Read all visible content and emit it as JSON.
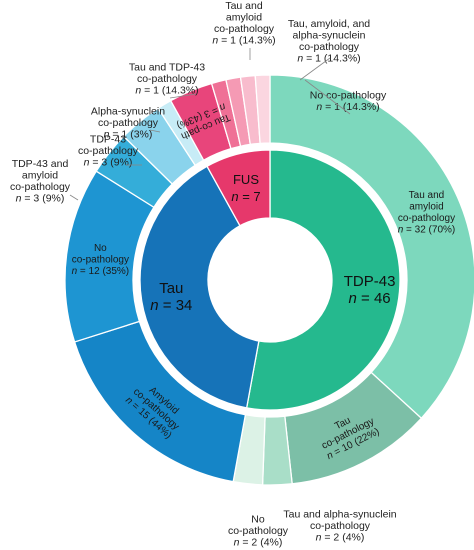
{
  "chart_data": {
    "type": "pie",
    "variant": "nested-donut",
    "inner_ring": [
      {
        "name": "TDP-43",
        "n_label": "n = 46",
        "value": 46,
        "color": "#25b98e"
      },
      {
        "name": "Tau",
        "n_label": "n = 34",
        "value": 34,
        "color": "#1673b8"
      },
      {
        "name": "FUS",
        "n_label": "n = 7",
        "value": 7,
        "color": "#e6386b"
      }
    ],
    "outer_ring": [
      {
        "parent": "TDP-43",
        "label": "Tau and amyloid co-pathology",
        "n_label": "n = 32 (70%)",
        "value": 32,
        "color": "#7dd8bd"
      },
      {
        "parent": "TDP-43",
        "label": "Tau co-pathology",
        "n_label": "n = 10 (22%)",
        "value": 10,
        "color": "#7cbfa7"
      },
      {
        "parent": "TDP-43",
        "label": "Tau and alpha-synuclein co-pathology",
        "n_label": "n = 2 (4%)",
        "value": 2,
        "color": "#a9dec8"
      },
      {
        "parent": "TDP-43",
        "label": "No co-pathology",
        "n_label": "n = 2 (4%)",
        "value": 2,
        "color": "#dcf2e6"
      },
      {
        "parent": "Tau",
        "label": "Amyloid co-pathology",
        "n_label": "n = 15 (44%)",
        "value": 15,
        "color": "#1585c7"
      },
      {
        "parent": "Tau",
        "label": "No co-pathology",
        "n_label": "n = 12 (35%)",
        "value": 12,
        "color": "#1e95d2"
      },
      {
        "parent": "Tau",
        "label": "TDP-43 and amyloid co-pathology",
        "n_label": "n = 3 (9%)",
        "value": 3,
        "color": "#34add9"
      },
      {
        "parent": "Tau",
        "label": "TDP-43 co-pathology",
        "n_label": "n = 3 (9%)",
        "value": 3,
        "color": "#8ad3ec"
      },
      {
        "parent": "Tau",
        "label": "Alpha-synuclein co-pathology",
        "n_label": "n = 1 (3%)",
        "value": 1,
        "color": "#c7ecf6"
      },
      {
        "parent": "FUS",
        "label": "Tau co-path",
        "n_label": "n = 3 (43%)",
        "value": 3,
        "color": "#e8457b"
      },
      {
        "parent": "FUS",
        "label": "Tau and TDP-43 co-pathology",
        "n_label": "n = 1 (14.3%)",
        "value": 1,
        "color": "#ef7096"
      },
      {
        "parent": "FUS",
        "label": "Tau and amyloid co-pathology",
        "n_label": "n = 1 (14.3%)",
        "value": 1,
        "color": "#f59ab4"
      },
      {
        "parent": "FUS",
        "label": "Tau, amyloid, and alpha-synuclein co-pathology",
        "n_label": "n = 1 (14.3%)",
        "value": 1,
        "color": "#f8bccd"
      },
      {
        "parent": "FUS",
        "label": "No co-pathology",
        "n_label": "n = 1 (14.3%)",
        "value": 1,
        "color": "#fbd6e0"
      }
    ],
    "outside_labels": [
      {
        "lines": [
          "Tau and",
          "amyloid",
          "co-pathology",
          "n = 1 (14.3%)"
        ]
      },
      {
        "lines": [
          "Tau, amyloid, and",
          "alpha-synuclein",
          "co-pathology",
          "n = 1 (14.3%)"
        ]
      },
      {
        "lines": [
          "Tau and TDP-43",
          "co-pathology",
          "n = 1 (14.3%)"
        ]
      },
      {
        "lines": [
          "No co-pathology",
          "n = 1 (14.3%)"
        ]
      },
      {
        "lines": [
          "Alpha-synuclein",
          "co-pathology",
          "n = 1 (3%)"
        ]
      },
      {
        "lines": [
          "TDP-43",
          "co-pathology",
          "n = 3 (9%)"
        ]
      },
      {
        "lines": [
          "TDP-43 and",
          "amyloid",
          "co-pathology",
          "n = 3 (9%)"
        ]
      },
      {
        "lines": [
          "No",
          "co-pathology",
          "n = 2 (4%)"
        ]
      },
      {
        "lines": [
          "Tau and alpha-synuclein",
          "co-pathology",
          "n = 2 (4%)"
        ]
      }
    ],
    "inside_labels": [
      {
        "lines": [
          "Tau and",
          "amyloid",
          "co-pathology",
          "n = 32 (70%)"
        ]
      },
      {
        "lines": [
          "No",
          "co-pathology",
          "n = 12 (35%)"
        ]
      },
      {
        "lines": [
          "Amyloid",
          "co-pathology",
          "n = 15 (44%)"
        ]
      },
      {
        "lines": [
          "Tau",
          "co-pathology",
          "n = 10 (22%)"
        ]
      },
      {
        "lines": [
          "Tau co-path",
          "n = 3 (43%)"
        ]
      }
    ]
  }
}
